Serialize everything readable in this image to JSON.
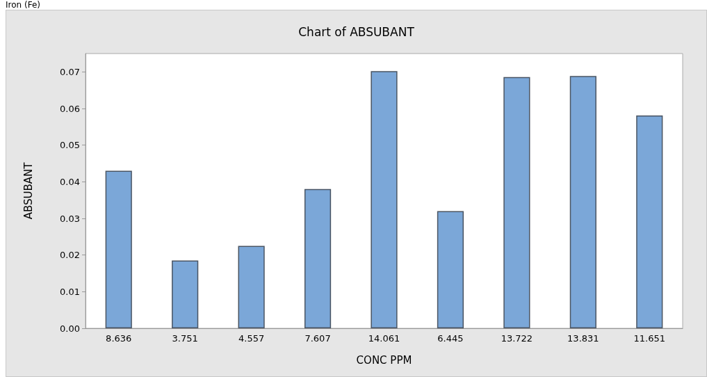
{
  "chart_data": {
    "type": "bar",
    "title": "Chart of ABSUBANT",
    "xlabel": "CONC PPM",
    "ylabel": "ABSUBANT",
    "annotations": [
      "Iron (Fe)"
    ],
    "categories": [
      "8.636",
      "3.751",
      "4.557",
      "7.607",
      "14.061",
      "6.445",
      "13.722",
      "13.831",
      "11.651"
    ],
    "values": [
      0.043,
      0.0185,
      0.0225,
      0.038,
      0.0702,
      0.032,
      0.0686,
      0.0689,
      0.0581
    ],
    "color": "#7ba7d8",
    "ylim": [
      0,
      0.075
    ],
    "yticks": [
      {
        "value": 0,
        "label": "0.00"
      },
      {
        "value": 0.01,
        "label": "0.01"
      },
      {
        "value": 0.02,
        "label": "0.02"
      },
      {
        "value": 0.03,
        "label": "0.03"
      },
      {
        "value": 0.04,
        "label": "0.04"
      },
      {
        "value": 0.05,
        "label": "0.05"
      },
      {
        "value": 0.06,
        "label": "0.06"
      },
      {
        "value": 0.07,
        "label": "0.07"
      }
    ],
    "grid": false
  }
}
